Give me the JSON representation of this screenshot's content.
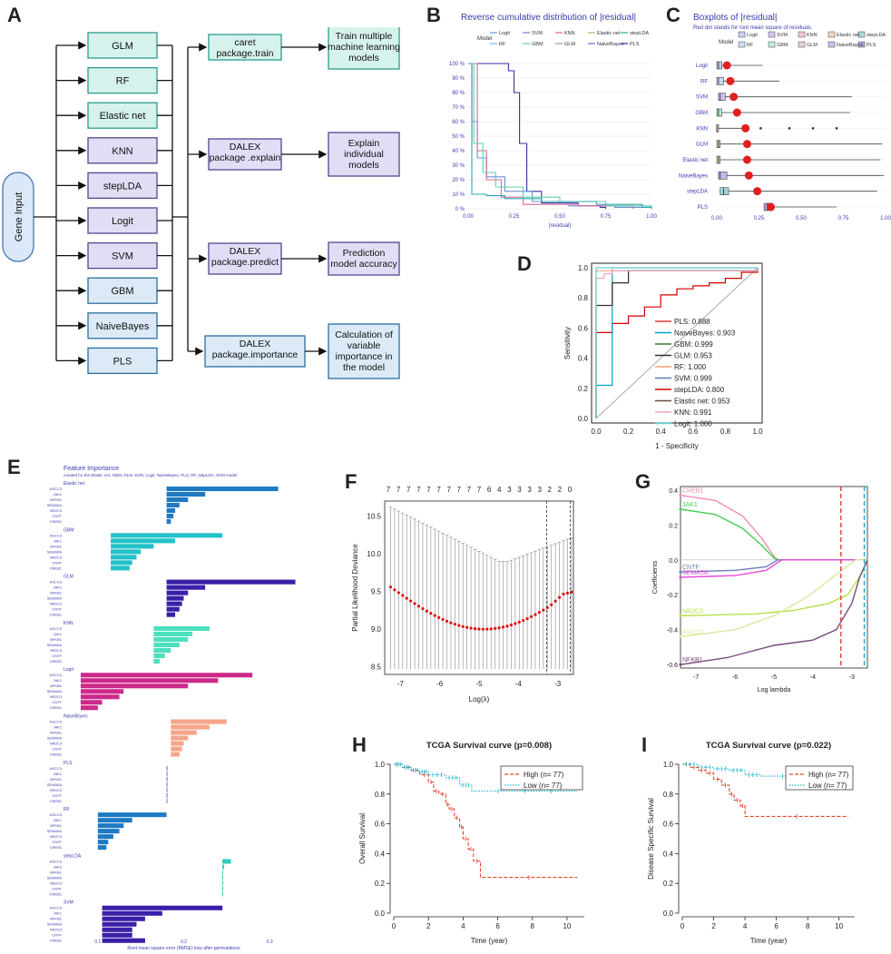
{
  "panel_labels": [
    "A",
    "B",
    "C",
    "D",
    "E",
    "F",
    "G",
    "H",
    "I"
  ],
  "flowchart": {
    "input": "Gene Input",
    "models": [
      "GLM",
      "RF",
      "Elastic net",
      "KNN",
      "stepLDA",
      "Logit",
      "SVM",
      "GBM",
      "NaiveBayes",
      "PLS"
    ],
    "steps": [
      {
        "pkg": [
          "caret",
          "package.train"
        ],
        "result": [
          "Train multiple",
          "machine learning",
          "models"
        ]
      },
      {
        "pkg": [
          "DALEX",
          "package .explain"
        ],
        "result": [
          "Explain",
          "individual",
          "models"
        ]
      },
      {
        "pkg": [
          "DALEX",
          "package.predict"
        ],
        "result": [
          "Prediction",
          "model accuracy"
        ]
      },
      {
        "pkg": [
          "DALEX",
          "package.importance"
        ],
        "result": [
          "Calculation of",
          "variable",
          "importance in",
          "the model"
        ]
      }
    ]
  },
  "model_colors": {
    "Logit": "#6b8fd6",
    "SVM": "#9a6bd6",
    "KNN": "#d66b9a",
    "Elastic net": "#d6a06b",
    "stepLDA": "#2ba8a8",
    "RF": "#7fb0e8",
    "GBM": "#5fd0b0",
    "GLM": "#c08a8a",
    "NaiveBayes": "#6a6ad6",
    "PLS": "#3a2fa0"
  },
  "chart_data": [
    {
      "id": "B",
      "type": "line",
      "title": "Reverse cumulative distribution of |residual|",
      "legend_title": "Model",
      "legend": [
        "Logit",
        "SVM",
        "KNN",
        "Elastic net",
        "stepLDA",
        "RF",
        "GBM",
        "GLM",
        "NaiveBayes",
        "PLS"
      ],
      "xlabel": "|residual|",
      "xticks": [
        "0.00",
        "0.25",
        "0.50",
        "0.75",
        "1.00"
      ],
      "yticks": [
        "0 %",
        "10 %",
        "20 %",
        "30 %",
        "40 %",
        "50 %",
        "60 %",
        "70 %",
        "80 %",
        "90 %",
        "100 %"
      ],
      "series": [
        {
          "name": "PLS",
          "x": [
            0,
            0.15,
            0.22,
            0.25,
            0.28,
            0.32,
            0.4,
            0.6,
            0.72,
            0.75
          ],
          "y": [
            100,
            100,
            95,
            80,
            45,
            12,
            4,
            2,
            1,
            0
          ]
        },
        {
          "name": "Logit",
          "x": [
            0,
            0.02,
            0.05,
            0.1,
            0.2,
            0.35,
            0.55,
            0.8,
            1.0
          ],
          "y": [
            100,
            60,
            35,
            22,
            12,
            5,
            2,
            1,
            0
          ]
        },
        {
          "name": "KNN",
          "x": [
            0,
            0.05,
            0.1,
            0.15,
            0.18,
            0.3,
            0.6,
            0.9
          ],
          "y": [
            100,
            40,
            20,
            20,
            8,
            3,
            2,
            0
          ]
        },
        {
          "name": "GBM",
          "x": [
            0,
            0.03,
            0.08,
            0.15,
            0.3,
            0.5,
            0.75,
            1.0
          ],
          "y": [
            100,
            45,
            25,
            15,
            8,
            5,
            2,
            0
          ]
        },
        {
          "name": "stepLDA",
          "x": [
            0,
            0.02,
            0.1,
            0.2,
            0.4,
            0.7,
            0.95,
            1.0
          ],
          "y": [
            100,
            10,
            9,
            7,
            5,
            3,
            1,
            0
          ]
        }
      ]
    },
    {
      "id": "C",
      "type": "box",
      "title": "Boxplots of |residual|",
      "subtitle": "Red dot stands for root mean square of residuals",
      "legend_title": "Model",
      "legend": [
        "Logit",
        "SVM",
        "KNN",
        "Elastic net",
        "stepLDA",
        "RF",
        "GBM",
        "GLM",
        "NaiveBayes",
        "PLS"
      ],
      "xticks": [
        "0.00",
        "0.25",
        "0.50",
        "0.75",
        "1.00"
      ],
      "categories": [
        "Logit",
        "RF",
        "SVM",
        "GBM",
        "KNN",
        "GLM",
        "Elastic net",
        "NaiveBayes",
        "stepLDA",
        "PLS"
      ],
      "boxes": [
        {
          "q1": 0.0,
          "med": 0.01,
          "q3": 0.03,
          "wmax": 0.27,
          "rms": 0.06
        },
        {
          "q1": 0.0,
          "med": 0.01,
          "q3": 0.04,
          "wmax": 0.37,
          "rms": 0.08
        },
        {
          "q1": 0.01,
          "med": 0.02,
          "q3": 0.05,
          "wmax": 0.8,
          "rms": 0.1
        },
        {
          "q1": 0.0,
          "med": 0.01,
          "q3": 0.03,
          "wmax": 0.79,
          "rms": 0.12
        },
        {
          "q1": 0.0,
          "med": 0.0,
          "q3": 0.01,
          "wmax": 0.15,
          "rms": 0.17,
          "out": [
            0.26,
            0.43,
            0.57,
            0.71
          ]
        },
        {
          "q1": 0.0,
          "med": 0.01,
          "q3": 0.02,
          "wmax": 0.98,
          "rms": 0.18
        },
        {
          "q1": 0.0,
          "med": 0.01,
          "q3": 0.02,
          "wmax": 0.97,
          "rms": 0.18
        },
        {
          "q1": 0.01,
          "med": 0.02,
          "q3": 0.06,
          "wmax": 0.99,
          "rms": 0.19
        },
        {
          "q1": 0.02,
          "med": 0.04,
          "q3": 0.07,
          "wmax": 0.95,
          "rms": 0.24
        },
        {
          "q1": 0.28,
          "med": 0.3,
          "q3": 0.33,
          "wmax": 0.71,
          "rms": 0.32
        }
      ]
    },
    {
      "id": "D",
      "type": "roc",
      "xlabel": "1 - Specificity",
      "ylabel": "Sensitivity",
      "ticks": [
        "0.0",
        "0.2",
        "0.4",
        "0.6",
        "0.8",
        "1.0"
      ],
      "legend": [
        {
          "name": "PLS: 0.888",
          "color": "#e53935"
        },
        {
          "name": "NaiveBayes: 0.903",
          "color": "#00a3c4"
        },
        {
          "name": "GBM: 0.999",
          "color": "#2e7d32"
        },
        {
          "name": "GLM: 0.953",
          "color": "#303030"
        },
        {
          "name": "RF: 1.000",
          "color": "#f0a37a"
        },
        {
          "name": "SVM: 0.999",
          "color": "#5b7fb5"
        },
        {
          "name": "stepLDA: 0.800",
          "color": "#d40000"
        },
        {
          "name": "Elastic net: 0.953",
          "color": "#6d4c41"
        },
        {
          "name": "KNN: 0.991",
          "color": "#f4a6c0"
        },
        {
          "name": "Logit: 1.000",
          "color": "#5fd4d4"
        }
      ],
      "curves": [
        {
          "color": "#d40000",
          "x": [
            0,
            0,
            0.1,
            0.1,
            0.2,
            0.2,
            0.3,
            0.3,
            0.4,
            0.4,
            0.5,
            0.6,
            0.7,
            0.8,
            0.9,
            1
          ],
          "y": [
            0,
            0.57,
            0.57,
            0.63,
            0.63,
            0.68,
            0.7,
            0.74,
            0.78,
            0.82,
            0.86,
            0.88,
            0.9,
            0.93,
            0.97,
            1
          ]
        },
        {
          "color": "#00a3c4",
          "x": [
            0,
            0,
            0.1,
            0.1,
            0.2,
            1
          ],
          "y": [
            0,
            0.22,
            0.22,
            0.98,
            0.98,
            1
          ]
        },
        {
          "color": "#303030",
          "x": [
            0,
            0,
            0.1,
            0.1,
            0.2,
            0.2,
            1
          ],
          "y": [
            0,
            0.75,
            0.75,
            0.9,
            0.9,
            0.98,
            1
          ]
        },
        {
          "color": "#f0a37a",
          "x": [
            0,
            0,
            0.1,
            1
          ],
          "y": [
            0,
            0.98,
            1,
            1
          ]
        },
        {
          "color": "#f4a6c0",
          "x": [
            0,
            0,
            0.05,
            0.1,
            1
          ],
          "y": [
            0,
            0.93,
            0.96,
            0.98,
            1
          ]
        },
        {
          "color": "#5fd4d4",
          "x": [
            0,
            0,
            1
          ],
          "y": [
            0,
            1,
            1
          ]
        }
      ]
    },
    {
      "id": "E",
      "type": "bar",
      "title": "Feature Importance",
      "subtitle": "created for the Elastic net, GBM, GLM, KNN, Logit, NaiveBayes, PLS, RF, stepLDA, SVM model",
      "xlabel": "Root mean square error (RMSE) loss after permutations",
      "xticks": [
        "0.1",
        "0.2",
        "0.3"
      ],
      "features": [
        "ASCC3",
        "JAK1",
        "NFKB1",
        "SEMA5A",
        "NR2C3",
        "CNTF",
        "CREB1"
      ],
      "groups": [
        {
          "name": "Elastic net",
          "color": "#1f7ac4",
          "base": 0.18,
          "values": [
            0.31,
            0.225,
            0.205,
            0.195,
            0.19,
            0.188,
            0.185
          ]
        },
        {
          "name": "GBM",
          "color": "#22c2c8",
          "base": 0.115,
          "values": [
            0.245,
            0.19,
            0.165,
            0.15,
            0.145,
            0.14,
            0.137
          ]
        },
        {
          "name": "GLM",
          "color": "#3a1fa8",
          "base": 0.18,
          "values": [
            0.33,
            0.225,
            0.205,
            0.2,
            0.198,
            0.195,
            0.19
          ]
        },
        {
          "name": "KNN",
          "color": "#4ddfc0",
          "base": 0.165,
          "values": [
            0.23,
            0.21,
            0.205,
            0.195,
            0.185,
            0.178,
            0.172
          ]
        },
        {
          "name": "Logit",
          "color": "#cc2a8a",
          "base": 0.08,
          "values": [
            0.28,
            0.24,
            0.205,
            0.13,
            0.125,
            0.105,
            0.1
          ]
        },
        {
          "name": "NaiveBayes",
          "color": "#f4a58a",
          "base": 0.185,
          "values": [
            0.25,
            0.23,
            0.215,
            0.205,
            0.2,
            0.198,
            0.195
          ]
        },
        {
          "name": "PLS",
          "color": "#6a6ad6",
          "base": 0.18,
          "values": [
            0.18,
            0.18,
            0.18,
            0.18,
            0.18,
            0.18,
            0.18
          ]
        },
        {
          "name": "RF",
          "color": "#1f7ac4",
          "base": 0.1,
          "values": [
            0.18,
            0.14,
            0.13,
            0.125,
            0.118,
            0.112,
            0.11
          ]
        },
        {
          "name": "stepLDA",
          "color": "#2bd0c0",
          "base": 0.245,
          "values": [
            0.255,
            0.247,
            0.246,
            0.246,
            0.246,
            0.246,
            0.246
          ]
        },
        {
          "name": "SVM",
          "color": "#3a1fa8",
          "base": 0.105,
          "values": [
            0.245,
            0.175,
            0.155,
            0.145,
            0.14,
            0.14,
            0.155
          ]
        }
      ]
    },
    {
      "id": "F",
      "type": "errorbar",
      "xlabel": "Log(λ)",
      "ylabel": "Partial Likelihood Deviance",
      "xticks": [
        "-7",
        "-6",
        "-5",
        "-4",
        "-3"
      ],
      "yticks": [
        "8.5",
        "9.0",
        "9.5",
        "10.0",
        "10.5"
      ],
      "top_labels": [
        "7",
        "7",
        "7",
        "7",
        "7",
        "7",
        "7",
        "7",
        "7",
        "7",
        "6",
        "4",
        "3",
        "3",
        "3",
        "3",
        "2",
        "2",
        "0"
      ],
      "xlim": [
        -7.4,
        -2.6
      ],
      "ylim": [
        8.4,
        10.7
      ],
      "vlines": [
        -3.28,
        -2.68
      ]
    },
    {
      "id": "G",
      "type": "line",
      "xlabel": "Log lambda",
      "ylabel": "Coefficients",
      "xticks": [
        "-7",
        "-6",
        "-5",
        "-4",
        "-3"
      ],
      "yticks": [
        "-0.6",
        "-0.4",
        "-0.2",
        "0.0",
        "0.2",
        "0.4"
      ],
      "xlim": [
        -7.4,
        -2.6
      ],
      "ylim": [
        -0.62,
        0.42
      ],
      "vlines": [
        {
          "x": -3.28,
          "color": "#e53935"
        },
        {
          "x": -2.68,
          "color": "#1ba3d4"
        }
      ],
      "series": [
        {
          "name": "CREB1",
          "color": "#f08cb0",
          "x": [
            -7.4,
            -6.5,
            -5.8,
            -5.3,
            -5.0,
            -4.9,
            -2.6
          ],
          "y": [
            0.37,
            0.34,
            0.25,
            0.12,
            0.02,
            0,
            0
          ]
        },
        {
          "name": "JAK1",
          "color": "#3ecf4a",
          "x": [
            -7.4,
            -6.5,
            -5.8,
            -5.3,
            -5.0,
            -4.9,
            -2.6
          ],
          "y": [
            0.29,
            0.26,
            0.18,
            0.08,
            0.01,
            0,
            0
          ]
        },
        {
          "name": "CNTF",
          "color": "#6b7fb8",
          "x": [
            -7.4,
            -6.0,
            -5.2,
            -4.9,
            -2.6
          ],
          "y": [
            -0.07,
            -0.06,
            -0.04,
            0,
            0
          ]
        },
        {
          "name": "SEMA5A",
          "color": "#e84ad8",
          "x": [
            -7.4,
            -6.0,
            -5.2,
            -4.8,
            -2.6
          ],
          "y": [
            -0.1,
            -0.09,
            -0.06,
            0,
            0
          ]
        },
        {
          "name": "NR2C3",
          "color": "#b6e04a",
          "x": [
            -7.4,
            -5.5,
            -4.5,
            -3.6,
            -3.1,
            -2.75,
            -2.6
          ],
          "y": [
            -0.32,
            -0.31,
            -0.29,
            -0.25,
            -0.2,
            -0.08,
            0
          ]
        },
        {
          "name": "ASCC3",
          "color": "#d9e8a0",
          "x": [
            -7.4,
            -6.0,
            -5.0,
            -4.2,
            -3.6,
            -3.2,
            -2.9,
            -2.6
          ],
          "y": [
            -0.44,
            -0.4,
            -0.32,
            -0.22,
            -0.12,
            -0.05,
            0,
            0
          ]
        },
        {
          "name": "NFKB1",
          "color": "#7a4a80",
          "x": [
            -7.4,
            -6.2,
            -5.0,
            -4.0,
            -3.4,
            -3.0,
            -2.8,
            -2.6
          ],
          "y": [
            -0.6,
            -0.56,
            -0.49,
            -0.46,
            -0.4,
            -0.25,
            -0.1,
            0
          ]
        }
      ]
    },
    {
      "id": "H",
      "type": "km",
      "title": "TCGA Survival curve (p=0.008)",
      "xlabel": "Time (year)",
      "ylabel": "Overall Survival",
      "xticks": [
        "0",
        "2",
        "4",
        "6",
        "8",
        "10"
      ],
      "yticks": [
        "0.0",
        "0.2",
        "0.4",
        "0.6",
        "0.8",
        "1.0"
      ],
      "legend": [
        "High (n= 77)",
        "Low (n= 77)"
      ],
      "series": [
        {
          "name": "High",
          "color": "#e8432e",
          "x": [
            0,
            0.5,
            1,
            1.5,
            2,
            2.3,
            2.6,
            3,
            3.2,
            3.5,
            3.8,
            4.0,
            4.3,
            4.6,
            5.0,
            10.6
          ],
          "y": [
            1,
            0.98,
            0.96,
            0.93,
            0.88,
            0.82,
            0.8,
            0.73,
            0.7,
            0.64,
            0.58,
            0.5,
            0.43,
            0.35,
            0.24,
            0.24
          ]
        },
        {
          "name": "Low",
          "color": "#1ab8cc",
          "x": [
            0,
            0.5,
            1,
            1.5,
            2,
            3.0,
            3.8,
            4.5,
            10.6
          ],
          "y": [
            1,
            0.98,
            0.96,
            0.95,
            0.93,
            0.91,
            0.86,
            0.82,
            0.82
          ]
        }
      ]
    },
    {
      "id": "I",
      "type": "km",
      "title": "TCGA Survival curve (p=0.022)",
      "xlabel": "Time (year)",
      "ylabel": "Disease Specific Survival",
      "xticks": [
        "0",
        "2",
        "4",
        "6",
        "8",
        "10"
      ],
      "yticks": [
        "0.0",
        "0.2",
        "0.4",
        "0.6",
        "0.8",
        "1.0"
      ],
      "legend": [
        "High (n= 77)",
        "Low (n= 77)"
      ],
      "series": [
        {
          "name": "High",
          "color": "#e8432e",
          "x": [
            0,
            0.5,
            1,
            1.5,
            2,
            2.5,
            3,
            3.3,
            3.7,
            4.0,
            10.6
          ],
          "y": [
            1,
            0.98,
            0.96,
            0.94,
            0.9,
            0.86,
            0.8,
            0.76,
            0.72,
            0.65,
            0.65
          ]
        },
        {
          "name": "Low",
          "color": "#1ab8cc",
          "x": [
            0,
            1,
            2,
            3,
            4,
            5,
            10.6
          ],
          "y": [
            1,
            0.98,
            0.97,
            0.96,
            0.93,
            0.92,
            0.92
          ]
        }
      ]
    }
  ]
}
